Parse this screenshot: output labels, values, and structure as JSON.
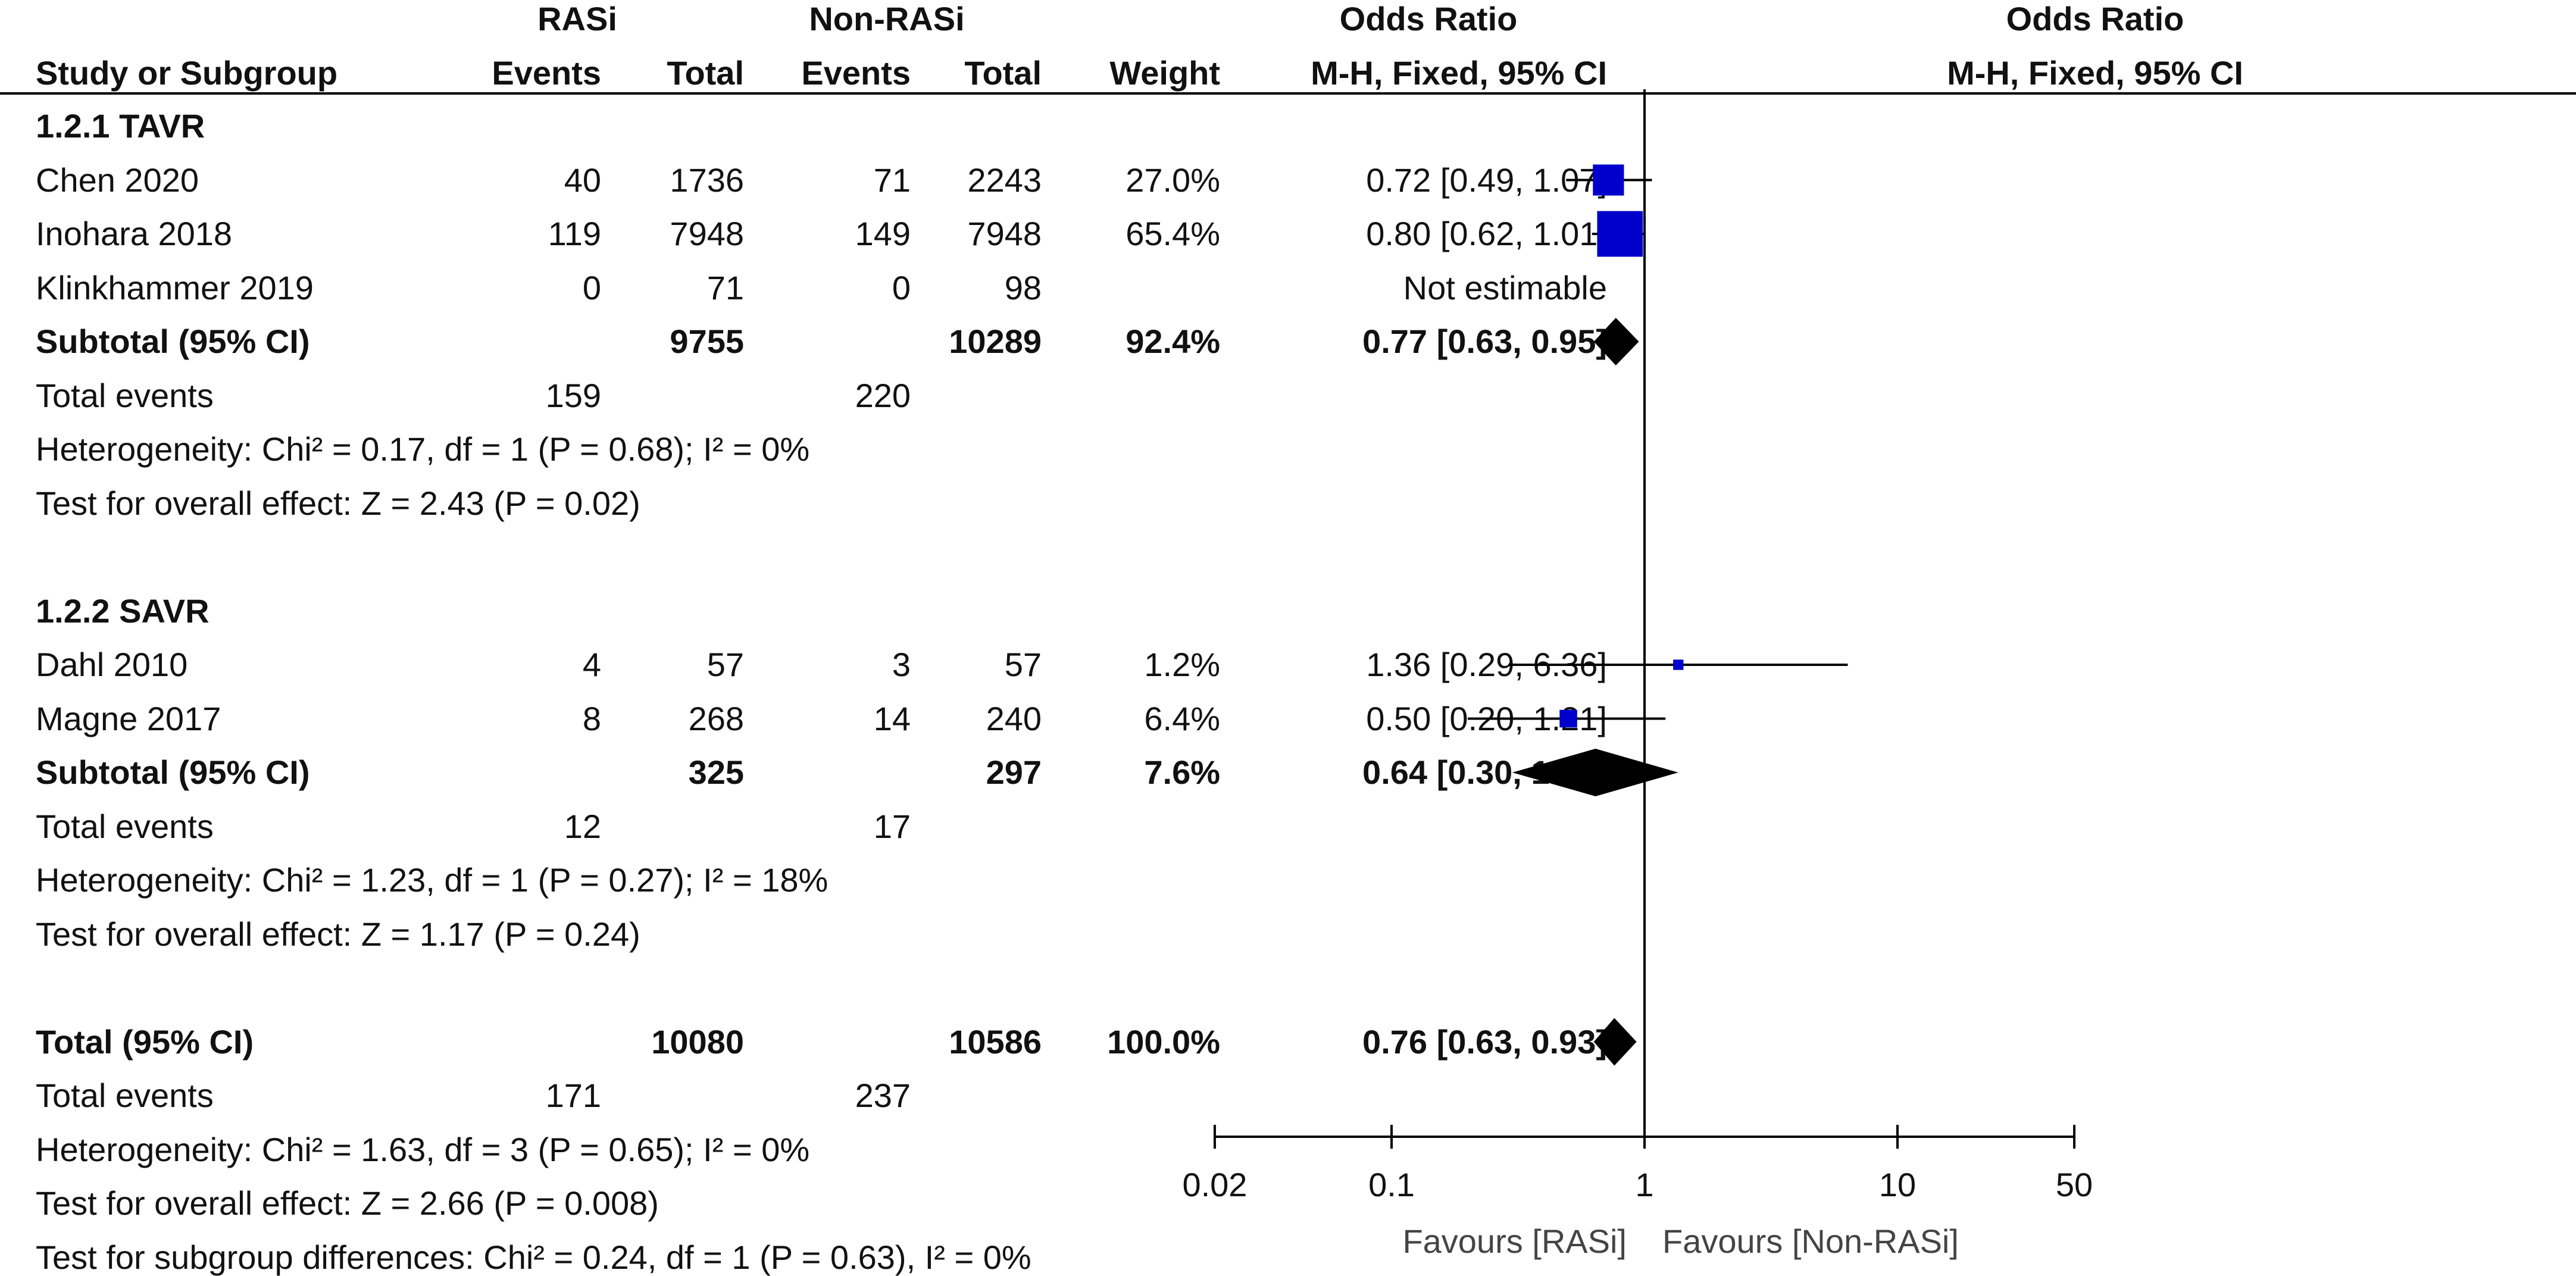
{
  "header": {
    "group1": "RASi",
    "group2": "Non-RASi",
    "or_title": "Odds Ratio",
    "plot_title": "Odds Ratio",
    "col_study": "Study or Subgroup",
    "col_events1": "Events",
    "col_total1": "Total",
    "col_events2": "Events",
    "col_total2": "Total",
    "col_weight": "Weight",
    "col_method": "M-H, Fixed, 95% CI",
    "plot_method": "M-H, Fixed, 95% CI"
  },
  "rows": [
    {
      "type": "heading",
      "label": "1.2.1 TAVR"
    },
    {
      "type": "study",
      "label": "Chen 2020",
      "e1": "40",
      "t1": "1736",
      "e2": "71",
      "t2": "2243",
      "w": "27.0%",
      "ci": "0.72 [0.49, 1.07]"
    },
    {
      "type": "study",
      "label": "Inohara 2018",
      "e1": "119",
      "t1": "7948",
      "e2": "149",
      "t2": "7948",
      "w": "65.4%",
      "ci": "0.80 [0.62, 1.01]"
    },
    {
      "type": "study",
      "label": "Klinkhammer 2019",
      "e1": "0",
      "t1": "71",
      "e2": "0",
      "t2": "98",
      "w": "",
      "ci": "Not estimable"
    },
    {
      "type": "subtotal",
      "label": "Subtotal (95% CI)",
      "e1": "",
      "t1": "9755",
      "e2": "",
      "t2": "10289",
      "w": "92.4%",
      "ci": "0.77 [0.63, 0.95]"
    },
    {
      "type": "events",
      "label": "Total events",
      "e1": "159",
      "e2": "220"
    },
    {
      "type": "text",
      "label": "Heterogeneity: Chi² = 0.17, df = 1 (P = 0.68); I² = 0%"
    },
    {
      "type": "text",
      "label": "Test for overall effect: Z = 2.43 (P = 0.02)"
    },
    {
      "type": "blank"
    },
    {
      "type": "heading",
      "label": "1.2.2 SAVR"
    },
    {
      "type": "study",
      "label": "Dahl 2010",
      "e1": "4",
      "t1": "57",
      "e2": "3",
      "t2": "57",
      "w": "1.2%",
      "ci": "1.36 [0.29, 6.36]"
    },
    {
      "type": "study",
      "label": "Magne 2017",
      "e1": "8",
      "t1": "268",
      "e2": "14",
      "t2": "240",
      "w": "6.4%",
      "ci": "0.50 [0.20, 1.21]"
    },
    {
      "type": "subtotal",
      "label": "Subtotal (95% CI)",
      "e1": "",
      "t1": "325",
      "e2": "",
      "t2": "297",
      "w": "7.6%",
      "ci": "0.64 [0.30, 1.36]"
    },
    {
      "type": "events",
      "label": "Total events",
      "e1": "12",
      "e2": "17"
    },
    {
      "type": "text",
      "label": "Heterogeneity: Chi² = 1.23, df = 1 (P = 0.27); I² = 18%"
    },
    {
      "type": "text",
      "label": "Test for overall effect: Z = 1.17 (P = 0.24)"
    },
    {
      "type": "blank"
    },
    {
      "type": "subtotal",
      "label": "Total (95% CI)",
      "e1": "",
      "t1": "10080",
      "e2": "",
      "t2": "10586",
      "w": "100.0%",
      "ci": "0.76 [0.63, 0.93]"
    },
    {
      "type": "events",
      "label": "Total events",
      "e1": "171",
      "e2": "237"
    },
    {
      "type": "text",
      "label": "Heterogeneity: Chi² = 1.63, df = 3 (P = 0.65); I² = 0%"
    },
    {
      "type": "text",
      "label": "Test for overall effect: Z = 2.66 (P = 0.008)"
    },
    {
      "type": "text",
      "label": "Test for subgroup differences: Chi² = 0.24, df = 1 (P = 0.63), I² = 0%"
    }
  ],
  "chart_data": {
    "type": "forest",
    "scale": "log",
    "xlim": [
      0.02,
      50
    ],
    "ticks": [
      {
        "value": 0.02,
        "label": "0.02"
      },
      {
        "value": 0.1,
        "label": "0.1"
      },
      {
        "value": 1,
        "label": "1"
      },
      {
        "value": 10,
        "label": "10"
      },
      {
        "value": 50,
        "label": "50"
      }
    ],
    "favours_left": "Favours [RASi]",
    "favours_right": "Favours [Non-RASi]",
    "marker_color": "#0000cc",
    "diamond_color": "#000000",
    "points": [
      {
        "row": 1,
        "label": "Chen 2020",
        "or": 0.72,
        "lo": 0.49,
        "hi": 1.07,
        "weight": 27.0
      },
      {
        "row": 2,
        "label": "Inohara 2018",
        "or": 0.8,
        "lo": 0.62,
        "hi": 1.01,
        "weight": 65.4
      },
      {
        "row": 10,
        "label": "Dahl 2010",
        "or": 1.36,
        "lo": 0.29,
        "hi": 6.36,
        "weight": 1.2
      },
      {
        "row": 11,
        "label": "Magne 2017",
        "or": 0.5,
        "lo": 0.2,
        "hi": 1.21,
        "weight": 6.4
      }
    ],
    "diamonds": [
      {
        "row": 4,
        "label": "Subtotal TAVR",
        "or": 0.77,
        "lo": 0.63,
        "hi": 0.95
      },
      {
        "row": 12,
        "label": "Subtotal SAVR",
        "or": 0.64,
        "lo": 0.3,
        "hi": 1.36
      },
      {
        "row": 17,
        "label": "Total",
        "or": 0.76,
        "lo": 0.63,
        "hi": 0.93
      }
    ]
  }
}
